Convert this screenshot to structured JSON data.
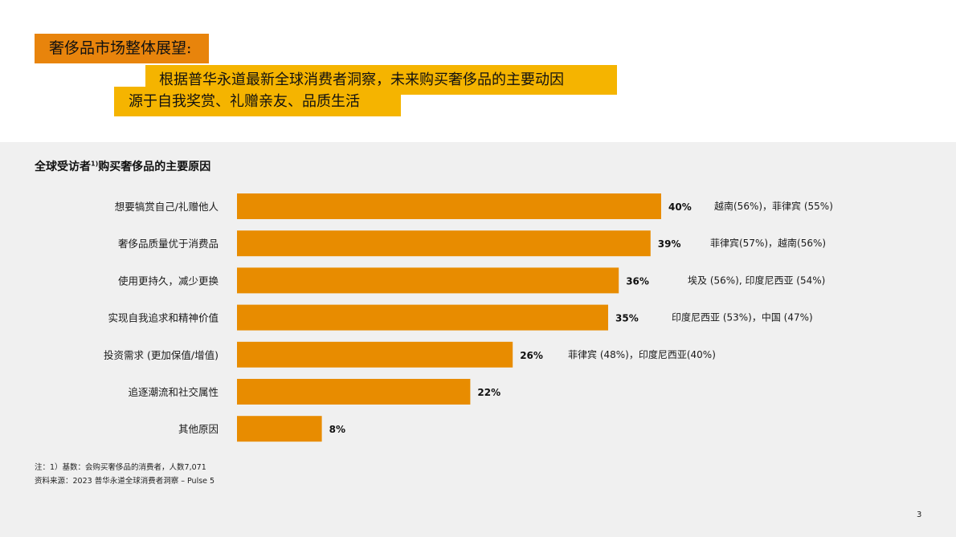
{
  "header": {
    "label": "奢侈品市场整体展望:",
    "headline_line1": "根据普华永道最新全球消费者洞察，未来购买奢侈品的主要动因",
    "headline_line2": "源于自我奖赏、礼赠亲友、品质生活"
  },
  "colors": {
    "bar": "#E88C00",
    "label_box_dark": "#E8840C",
    "label_box_light": "#F5B400",
    "panel": "#F0F0F0"
  },
  "chart_data": {
    "type": "bar",
    "orientation": "horizontal",
    "title_main": "全球受访者",
    "title_sup": "1)",
    "title_rest": "购买奢侈品的主要原因",
    "categories": [
      "想要犒赏自己/礼赠他人",
      "奢侈品质量优于消费品",
      "使用更持久，减少更换",
      "实现自我追求和精神价值",
      "投资需求 (更加保值/增值)",
      "追逐潮流和社交属性",
      "其他原因"
    ],
    "values": [
      40,
      39,
      36,
      35,
      26,
      22,
      8
    ],
    "value_labels": [
      "40%",
      "39%",
      "36%",
      "35%",
      "26%",
      "22%",
      "8%"
    ],
    "annotations": [
      "越南(56%)，菲律宾 (55%)",
      "菲律宾(57%)，越南(56%)",
      "埃及 (56%), 印度尼西亚 (54%)",
      "印度尼西亚 (53%)，中国 (47%)",
      "菲律宾 (48%)，印度尼西亚(40%)",
      "",
      ""
    ],
    "xlim": [
      0,
      100
    ],
    "grid": false,
    "legend": "none"
  },
  "footnotes": {
    "note": "注：1）基数：会购买奢侈品的消费者，人数7,071",
    "source": "资料来源：2023 普华永道全球消费者洞察 – Pulse 5"
  },
  "page_number": "3"
}
